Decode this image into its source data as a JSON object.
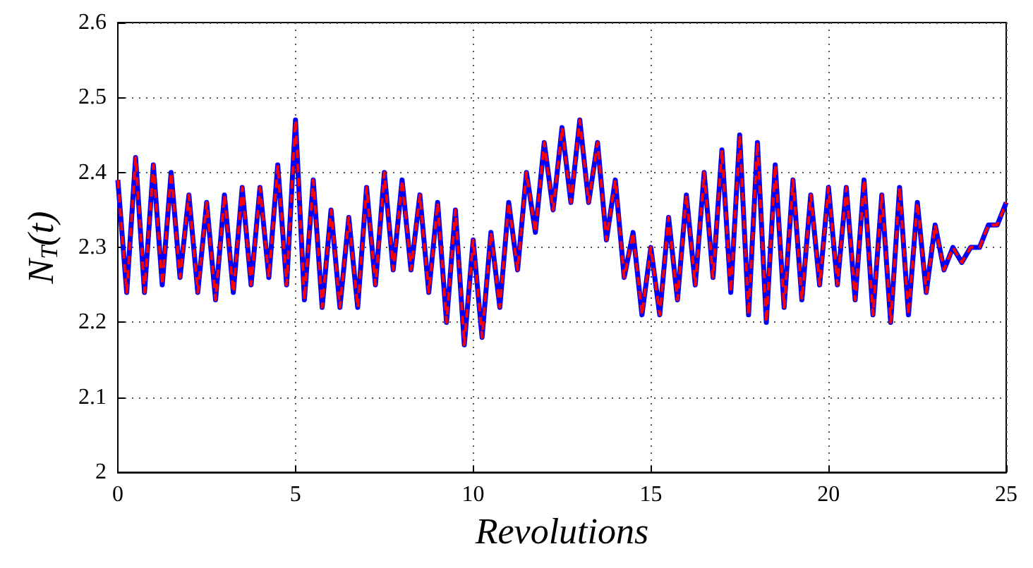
{
  "chart_data": {
    "type": "line",
    "xlabel": "Revolutions",
    "ylabel": "N$_{T}$(t)",
    "x": [
      0,
      0.25,
      0.5,
      0.75,
      1,
      1.25,
      1.5,
      1.75,
      2,
      2.25,
      2.5,
      2.75,
      3,
      3.25,
      3.5,
      3.75,
      4,
      4.25,
      4.5,
      4.75,
      5,
      5.25,
      5.5,
      5.75,
      6,
      6.25,
      6.5,
      6.75,
      7,
      7.25,
      7.5,
      7.75,
      8,
      8.25,
      8.5,
      8.75,
      9,
      9.25,
      9.5,
      9.75,
      10,
      10.25,
      10.5,
      10.75,
      11,
      11.25,
      11.5,
      11.75,
      12,
      12.25,
      12.5,
      12.75,
      13,
      13.25,
      13.5,
      13.75,
      14,
      14.25,
      14.5,
      14.75,
      15,
      15.25,
      15.5,
      15.75,
      16,
      16.25,
      16.5,
      16.75,
      17,
      17.25,
      17.5,
      17.75,
      18,
      18.25,
      18.5,
      18.75,
      19,
      19.25,
      19.5,
      19.75,
      20,
      20.25,
      20.5,
      20.75,
      21,
      21.25,
      21.5,
      21.75,
      22,
      22.25,
      22.5,
      22.75,
      23,
      23.25,
      23.5,
      23.75,
      24,
      24.25,
      24.5,
      24.75,
      25
    ],
    "series": [
      {
        "color": "#0000ff",
        "line_style": "solid",
        "values": [
          2.39,
          2.24,
          2.42,
          2.24,
          2.41,
          2.25,
          2.4,
          2.26,
          2.37,
          2.24,
          2.36,
          2.23,
          2.37,
          2.24,
          2.38,
          2.25,
          2.38,
          2.26,
          2.41,
          2.25,
          2.47,
          2.23,
          2.39,
          2.22,
          2.35,
          2.22,
          2.34,
          2.22,
          2.38,
          2.25,
          2.4,
          2.27,
          2.39,
          2.27,
          2.37,
          2.24,
          2.36,
          2.2,
          2.35,
          2.17,
          2.31,
          2.18,
          2.32,
          2.22,
          2.36,
          2.27,
          2.4,
          2.32,
          2.44,
          2.35,
          2.46,
          2.36,
          2.47,
          2.36,
          2.44,
          2.31,
          2.39,
          2.26,
          2.32,
          2.21,
          2.3,
          2.21,
          2.34,
          2.23,
          2.37,
          2.25,
          2.4,
          2.26,
          2.43,
          2.24,
          2.45,
          2.21,
          2.44,
          2.2,
          2.41,
          2.22,
          2.39,
          2.23,
          2.37,
          2.25,
          2.38,
          2.25,
          2.38,
          2.23,
          2.39,
          2.21,
          2.37,
          2.2,
          2.38,
          2.21,
          2.36,
          2.24,
          2.33,
          2.27,
          2.3,
          2.28,
          2.3,
          2.3,
          2.33,
          2.33,
          2.36
        ]
      },
      {
        "color": "#ff0000",
        "line_style": "dashed",
        "values": [
          2.39,
          2.24,
          2.42,
          2.24,
          2.41,
          2.25,
          2.4,
          2.26,
          2.37,
          2.24,
          2.36,
          2.23,
          2.37,
          2.24,
          2.38,
          2.25,
          2.38,
          2.26,
          2.41,
          2.25,
          2.47,
          2.23,
          2.39,
          2.22,
          2.35,
          2.22,
          2.34,
          2.22,
          2.38,
          2.25,
          2.4,
          2.27,
          2.39,
          2.27,
          2.37,
          2.24,
          2.36,
          2.2,
          2.35,
          2.17,
          2.31,
          2.18,
          2.32,
          2.22,
          2.36,
          2.27,
          2.4,
          2.32,
          2.44,
          2.35,
          2.46,
          2.36,
          2.47,
          2.36,
          2.44,
          2.31,
          2.39,
          2.26,
          2.32,
          2.21,
          2.3,
          2.21,
          2.34,
          2.23,
          2.37,
          2.25,
          2.4,
          2.26,
          2.43,
          2.24,
          2.45,
          2.21,
          2.44,
          2.2,
          2.41,
          2.22,
          2.39,
          2.23,
          2.37,
          2.25,
          2.38,
          2.25,
          2.38,
          2.23,
          2.39,
          2.21,
          2.37,
          2.2,
          2.38,
          2.21,
          2.36,
          2.24,
          2.33,
          2.27,
          2.3,
          2.28,
          2.3,
          2.3,
          2.33,
          2.33,
          2.36
        ]
      }
    ],
    "xlim": [
      0,
      25
    ],
    "xticks": [
      0,
      5,
      10,
      15,
      20,
      25
    ],
    "ylim": [
      2,
      2.6
    ],
    "yticks": [
      2,
      2.1,
      2.2,
      2.3,
      2.4,
      2.5,
      2.6
    ],
    "grid": true,
    "marker": "none"
  }
}
